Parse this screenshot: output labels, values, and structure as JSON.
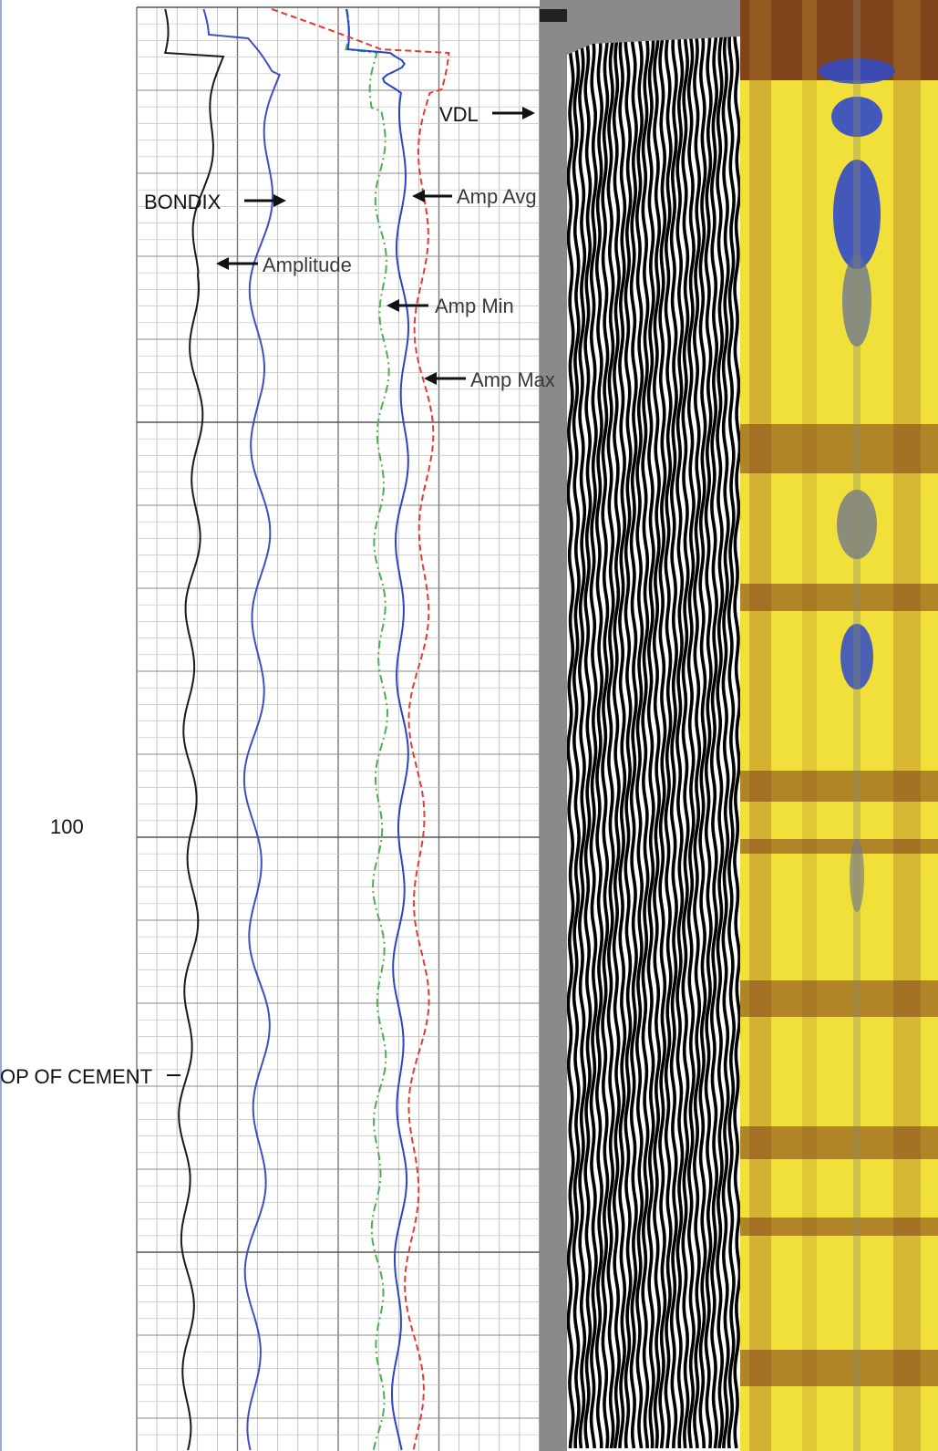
{
  "chart_data": {
    "type": "line",
    "depth_label": "100",
    "annotations": {
      "bondix": "BONDIX",
      "amplitude": "Amplitude",
      "amp_avg": "Amp Avg",
      "amp_min": "Amp Min",
      "amp_max": "Amp Max",
      "vdl": "VDL",
      "top_of_cement": "OP OF CEMENT"
    },
    "colors": {
      "amplitude": "#1a1a1a",
      "bondix": "#3d4fc4",
      "amp_min": "#4caf50",
      "amp_avg": "#2a44c8",
      "amp_max": "#e53935",
      "vdl_bg": "#ffffff",
      "vdl_trace": "#000000",
      "map_base": "#f2e03a",
      "map_dark": "#7a3a1a",
      "map_blue": "#2f49c9"
    },
    "grid": true
  }
}
